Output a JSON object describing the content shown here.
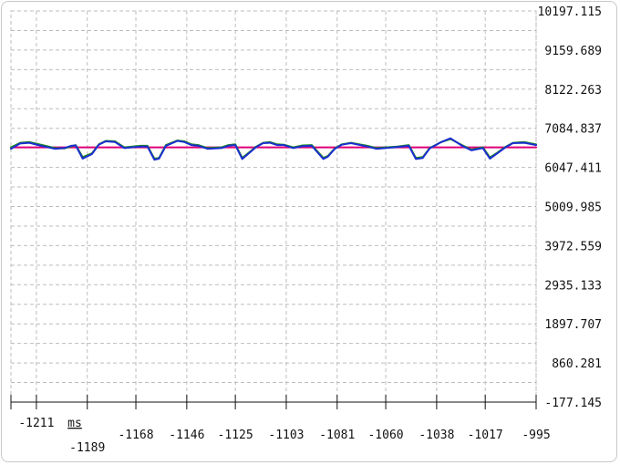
{
  "chart_data": {
    "type": "line",
    "x_unit": "ms",
    "x_range": [
      -1222,
      -995
    ],
    "x_ticks": [
      -1211,
      -1189,
      -1168,
      -1146,
      -1125,
      -1103,
      -1081,
      -1060,
      -1038,
      -1017,
      -995
    ],
    "x_tick_labels": [
      "-1211",
      "-1189",
      "-1168",
      "-1146",
      "-1125",
      "-1103",
      "-1081",
      "-1060",
      "-1038",
      "-1017",
      "-995"
    ],
    "y_range": [
      -177.145,
      10197.115
    ],
    "y_ticks": [
      10197.115,
      9159.689,
      8122.263,
      7084.837,
      6047.411,
      5009.985,
      3972.559,
      2935.133,
      1897.707,
      860.281,
      -177.145
    ],
    "y_tick_labels": [
      "10197.115",
      "9159.689",
      "8122.263",
      "7084.837",
      "6047.411",
      "5009.985",
      "3972.559",
      "2935.133",
      "1897.707",
      "860.281",
      "-177.145"
    ],
    "grid": true,
    "y_axis_side": "right",
    "series": [
      {
        "color": "#e0007a",
        "x": [
          -1222,
          -995
        ],
        "y": [
          6580,
          6580
        ]
      },
      {
        "color": "#1f8a1f",
        "x": [
          -1222,
          -1218,
          -1214,
          -1209,
          -1203,
          -1199,
          -1196,
          -1194,
          -1191,
          -1187,
          -1184,
          -1181,
          -1177,
          -1173,
          -1166,
          -1163,
          -1160,
          -1158,
          -1155,
          -1150,
          -1147,
          -1144,
          -1141,
          -1137,
          -1131,
          -1128,
          -1125,
          -1122,
          -1119,
          -1116,
          -1113,
          -1110,
          -1107,
          -1104,
          -1100,
          -1096,
          -1092,
          -1087,
          -1085,
          -1082,
          -1079,
          -1075,
          -1068,
          -1064,
          -1060,
          -1055,
          -1050,
          -1047,
          -1044,
          -1041,
          -1036,
          -1032,
          -1027,
          -1023,
          -1018,
          -1015,
          -1012,
          -1008,
          -1005,
          -1000,
          -995
        ],
        "y": [
          6580,
          6700,
          6720,
          6650,
          6560,
          6550,
          6600,
          6640,
          6320,
          6420,
          6660,
          6750,
          6740,
          6580,
          6620,
          6620,
          6280,
          6300,
          6640,
          6760,
          6740,
          6660,
          6640,
          6560,
          6580,
          6640,
          6660,
          6300,
          6450,
          6600,
          6700,
          6720,
          6660,
          6650,
          6580,
          6630,
          6640,
          6300,
          6350,
          6550,
          6660,
          6700,
          6620,
          6560,
          6580,
          6600,
          6640,
          6300,
          6320,
          6560,
          6720,
          6800,
          6640,
          6520,
          6580,
          6310,
          6430,
          6600,
          6700,
          6720,
          6660
        ]
      },
      {
        "color": "#1a2fd0",
        "x": [
          -1222,
          -1218,
          -1214,
          -1209,
          -1203,
          -1199,
          -1196,
          -1194,
          -1191,
          -1187,
          -1184,
          -1181,
          -1177,
          -1173,
          -1166,
          -1163,
          -1160,
          -1158,
          -1155,
          -1150,
          -1147,
          -1144,
          -1141,
          -1137,
          -1131,
          -1128,
          -1125,
          -1122,
          -1119,
          -1116,
          -1113,
          -1110,
          -1107,
          -1104,
          -1100,
          -1096,
          -1092,
          -1087,
          -1085,
          -1082,
          -1079,
          -1075,
          -1068,
          -1064,
          -1060,
          -1055,
          -1050,
          -1047,
          -1044,
          -1041,
          -1036,
          -1032,
          -1027,
          -1023,
          -1018,
          -1015,
          -1012,
          -1008,
          -1005,
          -1000,
          -995
        ],
        "y": [
          6540,
          6680,
          6700,
          6620,
          6540,
          6560,
          6620,
          6630,
          6280,
          6400,
          6650,
          6740,
          6720,
          6560,
          6600,
          6600,
          6250,
          6280,
          6620,
          6750,
          6720,
          6640,
          6620,
          6540,
          6560,
          6620,
          6640,
          6270,
          6430,
          6590,
          6690,
          6700,
          6640,
          6640,
          6560,
          6610,
          6620,
          6270,
          6330,
          6540,
          6650,
          6690,
          6600,
          6540,
          6560,
          6590,
          6620,
          6270,
          6300,
          6550,
          6720,
          6820,
          6620,
          6500,
          6560,
          6280,
          6410,
          6590,
          6690,
          6700,
          6640
        ]
      }
    ]
  }
}
